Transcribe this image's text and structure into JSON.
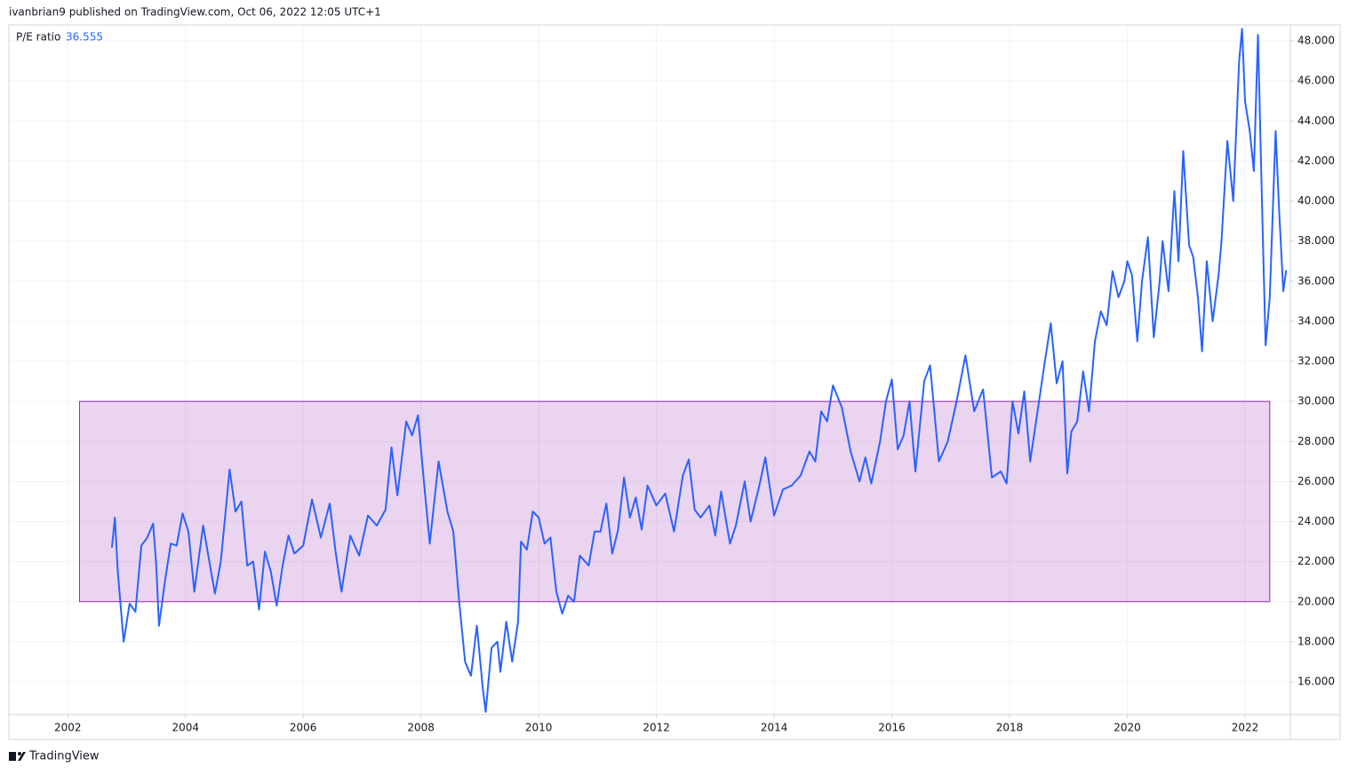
{
  "header": "ivanbrian9 published on TradingView.com, Oct 06, 2022 12:05 UTC+1",
  "footer": "TradingView",
  "chart_data": {
    "type": "line",
    "series": [
      {
        "name": "P/E ratio",
        "last_value_label": "36.555",
        "color": "#2962ff",
        "x": [
          2002.75,
          2002.8,
          2002.85,
          2002.95,
          2003.05,
          2003.15,
          2003.25,
          2003.35,
          2003.45,
          2003.5,
          2003.55,
          2003.65,
          2003.75,
          2003.85,
          2003.95,
          2004.05,
          2004.15,
          2004.3,
          2004.4,
          2004.5,
          2004.6,
          2004.75,
          2004.85,
          2004.95,
          2005.05,
          2005.15,
          2005.25,
          2005.35,
          2005.45,
          2005.55,
          2005.65,
          2005.75,
          2005.85,
          2006.0,
          2006.15,
          2006.3,
          2006.45,
          2006.55,
          2006.65,
          2006.8,
          2006.95,
          2007.1,
          2007.25,
          2007.4,
          2007.5,
          2007.6,
          2007.75,
          2007.85,
          2007.95,
          2008.05,
          2008.15,
          2008.3,
          2008.45,
          2008.55,
          2008.65,
          2008.75,
          2008.85,
          2008.95,
          2009.05,
          2009.1,
          2009.2,
          2009.3,
          2009.35,
          2009.45,
          2009.55,
          2009.65,
          2009.7,
          2009.8,
          2009.9,
          2010.0,
          2010.1,
          2010.2,
          2010.3,
          2010.4,
          2010.5,
          2010.6,
          2010.7,
          2010.85,
          2010.95,
          2011.05,
          2011.15,
          2011.25,
          2011.35,
          2011.45,
          2011.55,
          2011.65,
          2011.75,
          2011.85,
          2012.0,
          2012.15,
          2012.3,
          2012.45,
          2012.55,
          2012.65,
          2012.75,
          2012.9,
          2013.0,
          2013.1,
          2013.25,
          2013.35,
          2013.5,
          2013.6,
          2013.75,
          2013.85,
          2014.0,
          2014.15,
          2014.3,
          2014.45,
          2014.6,
          2014.7,
          2014.8,
          2014.9,
          2015.0,
          2015.15,
          2015.3,
          2015.45,
          2015.55,
          2015.65,
          2015.8,
          2015.9,
          2016.0,
          2016.1,
          2016.2,
          2016.3,
          2016.4,
          2016.55,
          2016.65,
          2016.8,
          2016.95,
          2017.1,
          2017.25,
          2017.4,
          2017.55,
          2017.7,
          2017.85,
          2017.95,
          2018.05,
          2018.15,
          2018.25,
          2018.35,
          2018.45,
          2018.6,
          2018.7,
          2018.8,
          2018.9,
          2018.98,
          2019.05,
          2019.15,
          2019.25,
          2019.35,
          2019.45,
          2019.55,
          2019.65,
          2019.75,
          2019.85,
          2019.95,
          2020.0,
          2020.08,
          2020.17,
          2020.25,
          2020.35,
          2020.45,
          2020.55,
          2020.6,
          2020.7,
          2020.8,
          2020.87,
          2020.95,
          2021.05,
          2021.12,
          2021.2,
          2021.27,
          2021.35,
          2021.45,
          2021.55,
          2021.6,
          2021.7,
          2021.8,
          2021.9,
          2021.95,
          2022.0,
          2022.08,
          2022.15,
          2022.22,
          2022.3,
          2022.35,
          2022.42,
          2022.52,
          2022.58,
          2022.65,
          2022.7
        ],
        "values": [
          22.7,
          24.2,
          21.5,
          18.0,
          19.9,
          19.5,
          22.8,
          23.2,
          23.9,
          22.0,
          18.8,
          21.0,
          22.9,
          22.8,
          24.4,
          23.5,
          20.5,
          23.8,
          22.1,
          20.4,
          22.0,
          26.6,
          24.5,
          25.0,
          21.8,
          22.0,
          19.6,
          22.5,
          21.5,
          19.8,
          21.8,
          23.3,
          22.4,
          22.8,
          25.1,
          23.2,
          24.9,
          22.5,
          20.5,
          23.3,
          22.3,
          24.3,
          23.8,
          24.6,
          27.7,
          25.3,
          29.0,
          28.3,
          29.3,
          26.0,
          22.9,
          27.0,
          24.5,
          23.5,
          20.0,
          17.0,
          16.3,
          18.8,
          15.7,
          14.5,
          17.7,
          18.0,
          16.5,
          19.0,
          17.0,
          19.0,
          23.0,
          22.6,
          24.5,
          24.2,
          22.9,
          23.2,
          20.5,
          19.4,
          20.3,
          20.0,
          22.3,
          21.8,
          23.5,
          23.5,
          24.9,
          22.4,
          23.6,
          26.2,
          24.2,
          25.2,
          23.6,
          25.8,
          24.8,
          25.4,
          23.5,
          26.3,
          27.1,
          24.6,
          24.2,
          24.8,
          23.3,
          25.5,
          22.9,
          23.8,
          26.0,
          24.0,
          25.8,
          27.2,
          24.3,
          25.6,
          25.8,
          26.3,
          27.5,
          27.0,
          29.5,
          29.0,
          30.8,
          29.7,
          27.5,
          26.0,
          27.2,
          25.9,
          28.0,
          30.0,
          31.1,
          27.6,
          28.3,
          30.0,
          26.5,
          31.0,
          31.8,
          27.0,
          28.0,
          30.0,
          32.3,
          29.5,
          30.6,
          26.2,
          26.5,
          25.9,
          30.0,
          28.4,
          30.5,
          27.0,
          29.0,
          32.0,
          33.9,
          30.9,
          32.0,
          26.4,
          28.5,
          29.0,
          31.5,
          29.5,
          33.0,
          34.5,
          33.8,
          36.5,
          35.2,
          36.0,
          37.0,
          36.3,
          33.0,
          36.0,
          38.2,
          33.2,
          36.0,
          38.0,
          35.5,
          40.5,
          37.0,
          42.5,
          37.8,
          37.2,
          35.2,
          32.5,
          37.0,
          34.0,
          36.3,
          38.0,
          43.0,
          40.0,
          47.0,
          48.6,
          45.0,
          43.5,
          41.5,
          48.3,
          38.5,
          32.8,
          35.2,
          43.5,
          39.5,
          35.5,
          36.555
        ]
      }
    ],
    "highlight": {
      "x": [
        2002.2,
        2022.42
      ],
      "y": [
        20,
        30
      ],
      "color": "#9c27b0"
    },
    "xlim": [
      2001.0,
      2022.77
    ],
    "xticks": [
      2002,
      2004,
      2006,
      2008,
      2010,
      2012,
      2014,
      2016,
      2018,
      2020,
      2022
    ],
    "ylim": [
      14.36,
      48.8
    ],
    "yticks": [
      {
        "value": 16,
        "label": "16.000"
      },
      {
        "value": 18,
        "label": "18.000"
      },
      {
        "value": 20,
        "label": "20.000"
      },
      {
        "value": 22,
        "label": "22.000"
      },
      {
        "value": 24,
        "label": "24.000"
      },
      {
        "value": 26,
        "label": "26.000"
      },
      {
        "value": 28,
        "label": "28.000"
      },
      {
        "value": 30,
        "label": "30.000"
      },
      {
        "value": 32,
        "label": "32.000"
      },
      {
        "value": 34,
        "label": "34.000"
      },
      {
        "value": 36,
        "label": "36.000"
      },
      {
        "value": 38,
        "label": "38.000"
      },
      {
        "value": 40,
        "label": "40.000"
      },
      {
        "value": 42,
        "label": "42.000"
      },
      {
        "value": 44,
        "label": "44.000"
      },
      {
        "value": 46,
        "label": "46.000"
      },
      {
        "value": 48,
        "label": "48.000"
      }
    ],
    "grid": true
  }
}
